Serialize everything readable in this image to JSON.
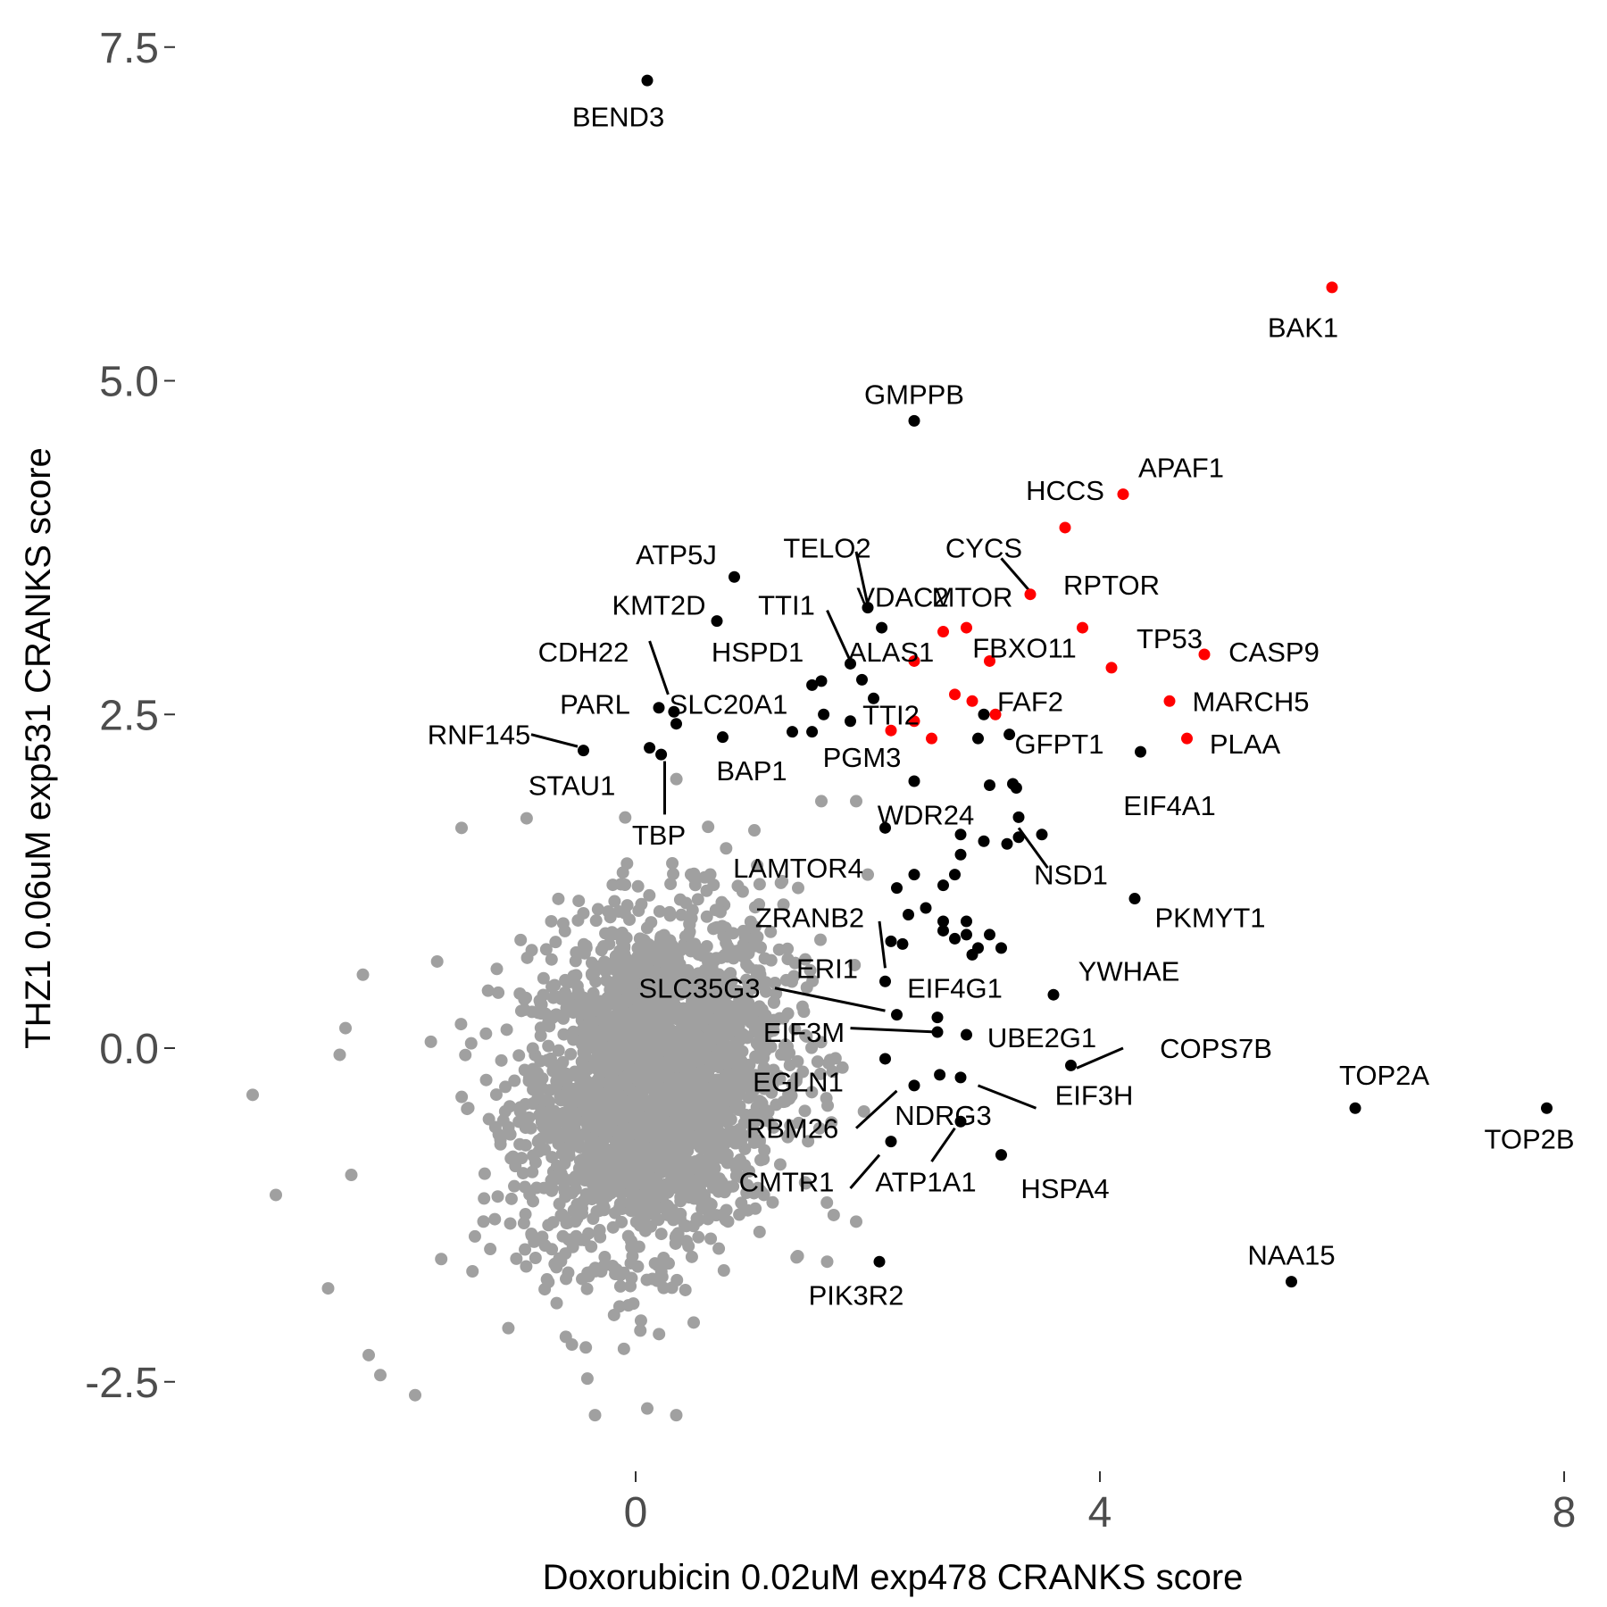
{
  "chart_data": {
    "type": "scatter",
    "xlabel": "Doxorubicin 0.02uM exp478 CRANKS score",
    "ylabel": "THZ1 0.06uM exp531 CRANKS score",
    "xlim": [
      -2.55,
      8.0
    ],
    "ylim": [
      -3.1,
      7.8
    ],
    "x_ticks": [
      0,
      4,
      8
    ],
    "x_tick_labels": [
      "0",
      "4",
      "8"
    ],
    "y_ticks": [
      -2.5,
      0.0,
      2.5,
      5.0,
      7.5
    ],
    "y_tick_labels": [
      "-2.5",
      "0.0",
      "2.5",
      "5.0",
      "7.5"
    ],
    "grid": false,
    "legend": "none",
    "colors": {
      "background_points": "#a0a0a0",
      "highlight": "#ff0000",
      "labeled": "#000000",
      "axis_text": "#4d4d4d"
    },
    "series": [
      {
        "role": "background",
        "color": "#a0a0a0",
        "description_points": "bulk of genes, dense cloud centered near (0.2, -0.3), spread approx x -1.5..2.3, y -2.5..2.2",
        "outliers": [
          {
            "x": -3.3,
            "y": -0.35
          },
          {
            "x": -3.1,
            "y": -1.1
          },
          {
            "x": -2.65,
            "y": -1.8
          },
          {
            "x": -2.55,
            "y": -0.05
          },
          {
            "x": -2.5,
            "y": 0.15
          },
          {
            "x": -2.45,
            "y": -0.95
          },
          {
            "x": -2.3,
            "y": -2.3
          },
          {
            "x": -2.2,
            "y": -2.45
          },
          {
            "x": -1.9,
            "y": -2.6
          },
          {
            "x": -2.35,
            "y": 0.55
          },
          {
            "x": -1.5,
            "y": 1.65
          },
          {
            "x": -0.35,
            "y": -2.75
          },
          {
            "x": 0.1,
            "y": -2.7
          },
          {
            "x": 0.35,
            "y": -2.75
          },
          {
            "x": 1.4,
            "y": 1.2
          },
          {
            "x": 1.6,
            "y": 1.85
          },
          {
            "x": 1.9,
            "y": 1.85
          },
          {
            "x": 1.65,
            "y": -1.6
          },
          {
            "x": 1.9,
            "y": -1.3
          },
          {
            "x": 2.0,
            "y": 1.3
          }
        ]
      },
      {
        "role": "highlight",
        "color": "#ff0000",
        "points": [
          {
            "x": 6.0,
            "y": 5.7,
            "label": "BAK1"
          },
          {
            "x": 4.2,
            "y": 4.15,
            "label": "APAF1"
          },
          {
            "x": 3.7,
            "y": 3.9,
            "label": "HCCS"
          },
          {
            "x": 3.4,
            "y": 3.4,
            "label": "CYCS"
          },
          {
            "x": 3.85,
            "y": 3.15,
            "label": "RPTOR"
          },
          {
            "x": 2.85,
            "y": 3.15,
            "label": "MTOR"
          },
          {
            "x": 2.65,
            "y": 3.12,
            "label": "VDAC2"
          },
          {
            "x": 4.9,
            "y": 2.95,
            "label": "CASP9"
          },
          {
            "x": 4.1,
            "y": 2.85,
            "label": "TP53"
          },
          {
            "x": 3.05,
            "y": 2.9,
            "label": "FBXO11"
          },
          {
            "x": 2.4,
            "y": 2.9,
            "label": "ALAS1"
          },
          {
            "x": 4.6,
            "y": 2.6,
            "label": "MARCH5"
          },
          {
            "x": 2.75,
            "y": 2.65,
            "label": ""
          },
          {
            "x": 2.9,
            "y": 2.6,
            "label": ""
          },
          {
            "x": 3.1,
            "y": 2.5,
            "label": "FAF2"
          },
          {
            "x": 2.4,
            "y": 2.45,
            "label": ""
          },
          {
            "x": 2.2,
            "y": 2.38,
            "label": "TTI2"
          },
          {
            "x": 2.55,
            "y": 2.32,
            "label": ""
          },
          {
            "x": 4.75,
            "y": 2.32,
            "label": "PLAA"
          }
        ]
      },
      {
        "role": "labeled",
        "color": "#000000",
        "points": [
          {
            "x": 0.1,
            "y": 7.25,
            "label": "BEND3"
          },
          {
            "x": 2.4,
            "y": 4.7,
            "label": "GMPPB"
          },
          {
            "x": 0.85,
            "y": 3.53,
            "label": "ATP5J"
          },
          {
            "x": 2.0,
            "y": 3.3,
            "label": "TELO2"
          },
          {
            "x": 0.7,
            "y": 3.2,
            "label": "KMT2D"
          },
          {
            "x": 2.12,
            "y": 3.15,
            "label": ""
          },
          {
            "x": 1.85,
            "y": 2.88,
            "label": "TTI1"
          },
          {
            "x": 1.6,
            "y": 2.75,
            "label": ""
          },
          {
            "x": 1.52,
            "y": 2.72,
            "label": "HSPD1"
          },
          {
            "x": 1.95,
            "y": 2.76,
            "label": ""
          },
          {
            "x": 2.05,
            "y": 2.62,
            "label": ""
          },
          {
            "x": 0.2,
            "y": 2.55,
            "label": "CDH22"
          },
          {
            "x": 0.33,
            "y": 2.52,
            "label": "SLC20A1"
          },
          {
            "x": 0.35,
            "y": 2.43,
            "label": ""
          },
          {
            "x": 1.62,
            "y": 2.5,
            "label": ""
          },
          {
            "x": 1.85,
            "y": 2.45,
            "label": ""
          },
          {
            "x": 1.35,
            "y": 2.37,
            "label": ""
          },
          {
            "x": 1.52,
            "y": 2.37,
            "label": ""
          },
          {
            "x": 3.0,
            "y": 2.5,
            "label": ""
          },
          {
            "x": 0.75,
            "y": 2.33,
            "label": "BAP1"
          },
          {
            "x": -0.45,
            "y": 2.23,
            "label": "RNF145"
          },
          {
            "x": 0.12,
            "y": 2.25,
            "label": "PARL"
          },
          {
            "x": 0.22,
            "y": 2.2,
            "label": "STAU1"
          },
          {
            "x": 2.95,
            "y": 2.32,
            "label": ""
          },
          {
            "x": 3.22,
            "y": 2.35,
            "label": "GFPT1"
          },
          {
            "x": 4.35,
            "y": 2.22,
            "label": "EIF4A1"
          },
          {
            "x": 2.4,
            "y": 2.0,
            "label": "PGM3"
          },
          {
            "x": 3.05,
            "y": 1.97,
            "label": ""
          },
          {
            "x": 3.25,
            "y": 1.98,
            "label": ""
          },
          {
            "x": 3.28,
            "y": 1.95,
            "label": ""
          },
          {
            "x": 3.3,
            "y": 1.73,
            "label": ""
          },
          {
            "x": 2.15,
            "y": 1.65,
            "label": "WDR24"
          },
          {
            "x": 2.8,
            "y": 1.6,
            "label": ""
          },
          {
            "x": 3.0,
            "y": 1.55,
            "label": ""
          },
          {
            "x": 3.2,
            "y": 1.53,
            "label": ""
          },
          {
            "x": 3.3,
            "y": 1.58,
            "label": ""
          },
          {
            "x": 3.5,
            "y": 1.6,
            "label": "NSD1"
          },
          {
            "x": 2.8,
            "y": 1.45,
            "label": ""
          },
          {
            "x": 2.4,
            "y": 1.3,
            "label": "LAMTOR4"
          },
          {
            "x": 2.75,
            "y": 1.3,
            "label": ""
          },
          {
            "x": 2.65,
            "y": 1.22,
            "label": ""
          },
          {
            "x": 2.25,
            "y": 1.2,
            "label": ""
          },
          {
            "x": 4.3,
            "y": 1.12,
            "label": "PKMYT1"
          },
          {
            "x": 2.5,
            "y": 1.05,
            "label": ""
          },
          {
            "x": 2.35,
            "y": 1.0,
            "label": "ZRANB2"
          },
          {
            "x": 2.65,
            "y": 0.95,
            "label": ""
          },
          {
            "x": 2.85,
            "y": 0.95,
            "label": ""
          },
          {
            "x": 2.65,
            "y": 0.88,
            "label": ""
          },
          {
            "x": 2.85,
            "y": 0.85,
            "label": ""
          },
          {
            "x": 2.75,
            "y": 0.82,
            "label": ""
          },
          {
            "x": 3.05,
            "y": 0.85,
            "label": ""
          },
          {
            "x": 2.95,
            "y": 0.75,
            "label": ""
          },
          {
            "x": 3.15,
            "y": 0.75,
            "label": ""
          },
          {
            "x": 2.2,
            "y": 0.8,
            "label": ""
          },
          {
            "x": 2.3,
            "y": 0.78,
            "label": ""
          },
          {
            "x": 2.9,
            "y": 0.7,
            "label": "EIF4G1"
          },
          {
            "x": 2.15,
            "y": 0.5,
            "label": "ERI1"
          },
          {
            "x": 3.6,
            "y": 0.4,
            "label": "YWHAE"
          },
          {
            "x": 2.25,
            "y": 0.25,
            "label": "SLC35G3"
          },
          {
            "x": 2.6,
            "y": 0.23,
            "label": ""
          },
          {
            "x": 2.6,
            "y": 0.12,
            "label": "EIF3M"
          },
          {
            "x": 2.85,
            "y": 0.1,
            "label": "UBE2G1"
          },
          {
            "x": 2.15,
            "y": -0.08,
            "label": ""
          },
          {
            "x": 3.75,
            "y": -0.13,
            "label": "COPS7B"
          },
          {
            "x": 2.62,
            "y": -0.2,
            "label": ""
          },
          {
            "x": 2.8,
            "y": -0.22,
            "label": "EIF3H"
          },
          {
            "x": 2.4,
            "y": -0.28,
            "label": "EGLN1"
          },
          {
            "x": 6.2,
            "y": -0.45,
            "label": "TOP2A"
          },
          {
            "x": 7.85,
            "y": -0.45,
            "label": "TOP2B"
          },
          {
            "x": 2.8,
            "y": -0.55,
            "label": "NDRG3"
          },
          {
            "x": 2.2,
            "y": -0.7,
            "label": "RBM26"
          },
          {
            "x": 3.15,
            "y": -0.8,
            "label": "HSPA4"
          },
          {
            "x": 2.1,
            "y": -1.6,
            "label": "PIK3R2"
          },
          {
            "x": 5.65,
            "y": -1.75,
            "label": "NAA15"
          }
        ]
      }
    ],
    "annotations": [
      {
        "text": "BEND3",
        "x": -0.15,
        "y": 6.98
      },
      {
        "text": "BAK1",
        "x": 5.75,
        "y": 5.4
      },
      {
        "text": "GMPPB",
        "x": 2.4,
        "y": 4.9
      },
      {
        "text": "APAF1",
        "x": 4.7,
        "y": 4.35
      },
      {
        "text": "HCCS",
        "x": 3.7,
        "y": 4.18
      },
      {
        "text": "CYCS",
        "x": 3.0,
        "y": 3.75
      },
      {
        "text": "ATP5J",
        "x": 0.35,
        "y": 3.7
      },
      {
        "text": "TELO2",
        "x": 1.65,
        "y": 3.75
      },
      {
        "text": "RPTOR",
        "x": 4.1,
        "y": 3.47
      },
      {
        "text": "VDAC2",
        "x": 2.3,
        "y": 3.38
      },
      {
        "text": "MTOR",
        "x": 2.9,
        "y": 3.38
      },
      {
        "text": "KMT2D",
        "x": 0.2,
        "y": 3.32
      },
      {
        "text": "TTI1",
        "x": 1.3,
        "y": 3.32
      },
      {
        "text": "TP53",
        "x": 4.6,
        "y": 3.07
      },
      {
        "text": "CASP9",
        "x": 5.5,
        "y": 2.97
      },
      {
        "text": "CDH22",
        "x": -0.45,
        "y": 2.97
      },
      {
        "text": "HSPD1",
        "x": 1.05,
        "y": 2.97
      },
      {
        "text": "ALAS1",
        "x": 2.2,
        "y": 2.97
      },
      {
        "text": "FBXO11",
        "x": 3.35,
        "y": 3.0
      },
      {
        "text": "SLC20A1",
        "x": 0.8,
        "y": 2.58
      },
      {
        "text": "PARL",
        "x": -0.35,
        "y": 2.58
      },
      {
        "text": "MARCH5",
        "x": 5.3,
        "y": 2.6
      },
      {
        "text": "FAF2",
        "x": 3.4,
        "y": 2.6
      },
      {
        "text": "TTI2",
        "x": 2.2,
        "y": 2.5
      },
      {
        "text": "RNF145",
        "x": -1.35,
        "y": 2.35
      },
      {
        "text": "GFPT1",
        "x": 3.65,
        "y": 2.28
      },
      {
        "text": "PLAA",
        "x": 5.25,
        "y": 2.28
      },
      {
        "text": "PGM3",
        "x": 1.95,
        "y": 2.18
      },
      {
        "text": "BAP1",
        "x": 1.0,
        "y": 2.08
      },
      {
        "text": "STAU1",
        "x": -0.55,
        "y": 1.97
      },
      {
        "text": "EIF4A1",
        "x": 4.6,
        "y": 1.82
      },
      {
        "text": "WDR24",
        "x": 2.5,
        "y": 1.75
      },
      {
        "text": "TBP",
        "x": 0.2,
        "y": 1.6
      },
      {
        "text": "LAMTOR4",
        "x": 1.4,
        "y": 1.35
      },
      {
        "text": "NSD1",
        "x": 3.75,
        "y": 1.3
      },
      {
        "text": "PKMYT1",
        "x": 4.95,
        "y": 0.98
      },
      {
        "text": "ZRANB2",
        "x": 1.5,
        "y": 0.98
      },
      {
        "text": "YWHAE",
        "x": 4.25,
        "y": 0.58
      },
      {
        "text": "ERI1",
        "x": 1.65,
        "y": 0.6
      },
      {
        "text": "SLC35G3",
        "x": 0.55,
        "y": 0.45
      },
      {
        "text": "EIF4G1",
        "x": 2.75,
        "y": 0.45
      },
      {
        "text": "EIF3M",
        "x": 1.45,
        "y": 0.12
      },
      {
        "text": "UBE2G1",
        "x": 3.5,
        "y": 0.08
      },
      {
        "text": "COPS7B",
        "x": 5.0,
        "y": 0.0
      },
      {
        "text": "EGLN1",
        "x": 1.4,
        "y": -0.25
      },
      {
        "text": "TOP2A",
        "x": 6.45,
        "y": -0.2
      },
      {
        "text": "EIF3H",
        "x": 3.95,
        "y": -0.35
      },
      {
        "text": "RBM26",
        "x": 1.35,
        "y": -0.6
      },
      {
        "text": "NDRG3",
        "x": 2.65,
        "y": -0.5
      },
      {
        "text": "TOP2B",
        "x": 7.7,
        "y": -0.68
      },
      {
        "text": "CMTR1",
        "x": 1.3,
        "y": -1.0
      },
      {
        "text": "ATP1A1",
        "x": 2.5,
        "y": -1.0
      },
      {
        "text": "HSPA4",
        "x": 3.7,
        "y": -1.05
      },
      {
        "text": "NAA15",
        "x": 5.65,
        "y": -1.55
      },
      {
        "text": "PIK3R2",
        "x": 1.9,
        "y": -1.85
      }
    ],
    "connector_lines": [
      {
        "from": [
          0.12,
          3.05
        ],
        "to": [
          0.28,
          2.65
        ]
      },
      {
        "from": [
          1.65,
          3.28
        ],
        "to": [
          1.85,
          2.9
        ]
      },
      {
        "from": [
          1.9,
          3.72
        ],
        "to": [
          2.0,
          3.32
        ]
      },
      {
        "from": [
          3.15,
          3.67
        ],
        "to": [
          3.4,
          3.42
        ]
      },
      {
        "from": [
          0.25,
          2.15
        ],
        "to": [
          0.25,
          1.75
        ]
      },
      {
        "from": [
          -0.9,
          2.35
        ],
        "to": [
          -0.5,
          2.26
        ]
      },
      {
        "from": [
          3.3,
          1.65
        ],
        "to": [
          3.55,
          1.35
        ]
      },
      {
        "from": [
          2.1,
          0.95
        ],
        "to": [
          2.15,
          0.6
        ]
      },
      {
        "from": [
          1.2,
          0.45
        ],
        "to": [
          2.15,
          0.28
        ]
      },
      {
        "from": [
          1.85,
          0.15
        ],
        "to": [
          2.6,
          0.12
        ]
      },
      {
        "from": [
          2.95,
          -0.28
        ],
        "to": [
          3.45,
          -0.45
        ]
      },
      {
        "from": [
          3.8,
          -0.15
        ],
        "to": [
          4.2,
          0.0
        ]
      },
      {
        "from": [
          2.25,
          -0.32
        ],
        "to": [
          1.9,
          -0.6
        ]
      },
      {
        "from": [
          2.1,
          -0.8
        ],
        "to": [
          1.85,
          -1.05
        ]
      },
      {
        "from": [
          2.75,
          -0.6
        ],
        "to": [
          2.55,
          -0.85
        ]
      }
    ]
  }
}
